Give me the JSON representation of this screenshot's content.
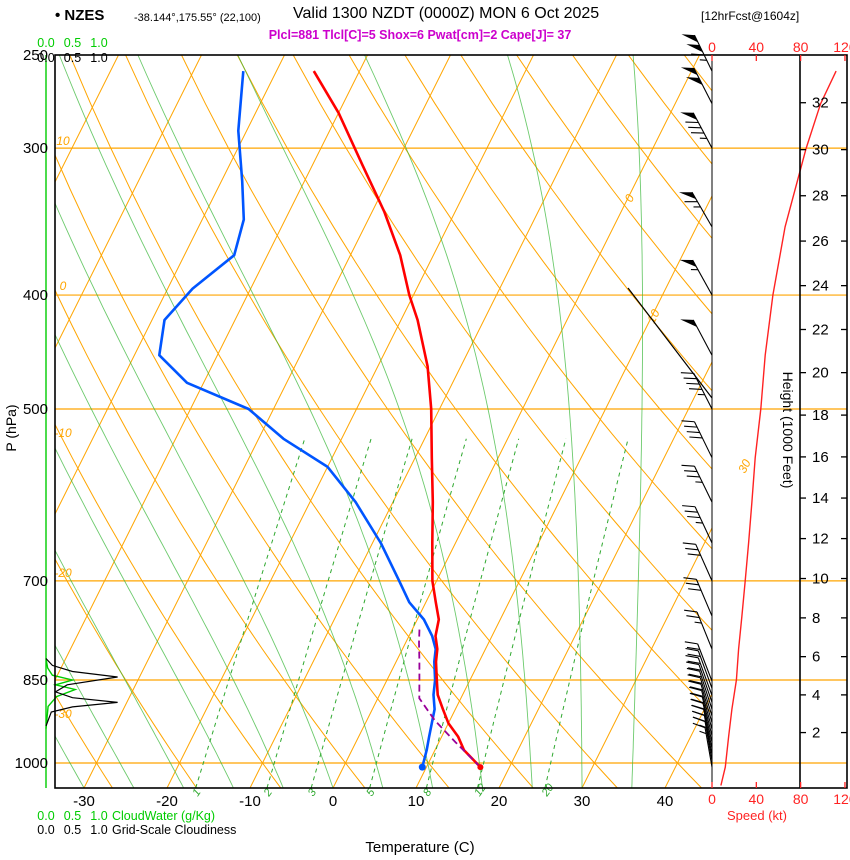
{
  "header": {
    "station": "• NZES",
    "coords": "-38.144°,175.55° (22,100)",
    "valid": "Valid 1300 NZDT (0000Z) MON 6 Oct 2025",
    "fcst": "[12hrFcst@1604z]",
    "indices": "Plcl=881 Tlcl[C]=5 Shox=6 Pwat[cm]=2 Cape[J]= 37"
  },
  "axis_labels": {
    "pressure": "P (hPa)",
    "temperature": "Temperature (C)",
    "height": "Height (1000 Feet)",
    "speed": "Speed (kt)",
    "cloudwater": "CloudWater (g/Kg)",
    "cloudiness": "Grid-Scale Cloudiness"
  },
  "colors": {
    "grid": "#FFA500",
    "moist": "#3CB83C",
    "mixing": "#2FA82F",
    "temp": "#FF0000",
    "dew": "#0055FF",
    "parcel": "#990099",
    "indices": "#CC00CC",
    "speed": "#FF2222",
    "cloudwater": "#00CC00",
    "cloudiness": "#000000"
  },
  "chart_data": {
    "type": "skewt-logp",
    "axes": {
      "pressure_hpa_ticks": [
        250,
        300,
        400,
        500,
        700,
        850,
        1000
      ],
      "temperature_c_ticks": [
        -30,
        -20,
        -10,
        0,
        10,
        20,
        30,
        40
      ],
      "height_kft_ticks": [
        2,
        4,
        6,
        8,
        10,
        12,
        14,
        16,
        18,
        20,
        22,
        24,
        26,
        28,
        30,
        32
      ],
      "speed_kt_ticks": [
        0,
        40,
        80,
        120
      ],
      "cloud_scale": [
        "0.0",
        "0.5",
        "1.0"
      ],
      "pressure_range_hpa": [
        250,
        1050
      ]
    },
    "isotherm_labels": [
      0,
      10,
      30
    ],
    "dry_adiabat_labels": [
      10,
      0,
      -10,
      -20,
      -30
    ],
    "mixing_ratio_lines_gkg": [
      1,
      2,
      3,
      5,
      8,
      12,
      20
    ],
    "temperature_profile_p_c": [
      [
        1008,
        16.5
      ],
      [
        975,
        13.5
      ],
      [
        950,
        12
      ],
      [
        925,
        10
      ],
      [
        900,
        8.5
      ],
      [
        875,
        7
      ],
      [
        850,
        6
      ],
      [
        820,
        4.8
      ],
      [
        800,
        4.2
      ],
      [
        780,
        3.2
      ],
      [
        755,
        2.6
      ],
      [
        730,
        1.2
      ],
      [
        700,
        -0.5
      ],
      [
        650,
        -2.8
      ],
      [
        600,
        -5.2
      ],
      [
        550,
        -8
      ],
      [
        500,
        -11
      ],
      [
        460,
        -14
      ],
      [
        420,
        -18
      ],
      [
        400,
        -20.5
      ],
      [
        370,
        -24
      ],
      [
        340,
        -28.5
      ],
      [
        310,
        -34
      ],
      [
        280,
        -40
      ],
      [
        258,
        -45.5
      ]
    ],
    "dewpoint_profile_p_c": [
      [
        1008,
        9.5
      ],
      [
        975,
        9
      ],
      [
        950,
        8.5
      ],
      [
        925,
        8
      ],
      [
        900,
        7.5
      ],
      [
        875,
        6.5
      ],
      [
        850,
        5.8
      ],
      [
        820,
        4.6
      ],
      [
        800,
        4
      ],
      [
        780,
        2.8
      ],
      [
        755,
        0.8
      ],
      [
        730,
        -2
      ],
      [
        700,
        -4.5
      ],
      [
        650,
        -9
      ],
      [
        600,
        -14.5
      ],
      [
        560,
        -20
      ],
      [
        530,
        -27
      ],
      [
        500,
        -33
      ],
      [
        475,
        -42
      ],
      [
        450,
        -47
      ],
      [
        420,
        -48.5
      ],
      [
        395,
        -47
      ],
      [
        370,
        -44
      ],
      [
        345,
        -45
      ],
      [
        320,
        -47.5
      ],
      [
        290,
        -51
      ],
      [
        258,
        -54
      ]
    ],
    "parcel_profile_p_c": [
      [
        1008,
        16.5
      ],
      [
        960,
        12
      ],
      [
        920,
        8.2
      ],
      [
        881,
        5
      ],
      [
        850,
        3.9
      ],
      [
        820,
        2.8
      ],
      [
        790,
        1.6
      ],
      [
        768,
        0.8
      ]
    ],
    "wind_barbs_p_kt_dir": [
      [
        1008,
        15,
        350
      ],
      [
        996,
        15,
        350
      ],
      [
        984,
        18,
        349
      ],
      [
        972,
        18,
        348
      ],
      [
        960,
        20,
        347
      ],
      [
        948,
        20,
        346
      ],
      [
        936,
        20,
        345
      ],
      [
        924,
        20,
        344
      ],
      [
        912,
        18,
        343
      ],
      [
        900,
        18,
        342
      ],
      [
        888,
        20,
        341
      ],
      [
        876,
        20,
        340
      ],
      [
        864,
        22,
        340
      ],
      [
        852,
        22,
        339
      ],
      [
        800,
        25,
        338
      ],
      [
        750,
        28,
        337
      ],
      [
        700,
        30,
        336
      ],
      [
        650,
        33,
        335
      ],
      [
        600,
        36,
        334
      ],
      [
        550,
        40,
        334
      ],
      [
        500,
        44,
        333
      ],
      [
        450,
        48,
        332
      ],
      [
        400,
        55,
        331
      ],
      [
        350,
        65,
        330
      ],
      [
        300,
        85,
        332
      ],
      [
        275,
        100,
        333
      ],
      [
        258,
        115,
        334
      ]
    ],
    "wind_speed_profile_p_kt": [
      [
        1045,
        8
      ],
      [
        1008,
        12
      ],
      [
        950,
        15
      ],
      [
        900,
        18
      ],
      [
        850,
        22
      ],
      [
        800,
        24
      ],
      [
        750,
        27
      ],
      [
        700,
        30
      ],
      [
        650,
        33
      ],
      [
        600,
        36
      ],
      [
        550,
        39
      ],
      [
        500,
        44
      ],
      [
        450,
        48
      ],
      [
        400,
        55
      ],
      [
        350,
        66
      ],
      [
        300,
        85
      ],
      [
        275,
        98
      ],
      [
        258,
        112
      ]
    ],
    "cloud_water_profile_p_gkg": [
      [
        935,
        0
      ],
      [
        895,
        0.04
      ],
      [
        878,
        0.2
      ],
      [
        866,
        0.55
      ],
      [
        858,
        0.18
      ],
      [
        850,
        0.5
      ],
      [
        842,
        0.12
      ],
      [
        830,
        0.03
      ],
      [
        815,
        0
      ]
    ],
    "cloudiness_profile_p_frac": [
      [
        930,
        0
      ],
      [
        905,
        0.1
      ],
      [
        896,
        0.5
      ],
      [
        888,
        1.35
      ],
      [
        880,
        0.5
      ],
      [
        870,
        0.18
      ],
      [
        858,
        0.4
      ],
      [
        845,
        1.35
      ],
      [
        836,
        0.5
      ],
      [
        826,
        0.12
      ],
      [
        815,
        0
      ]
    ]
  }
}
